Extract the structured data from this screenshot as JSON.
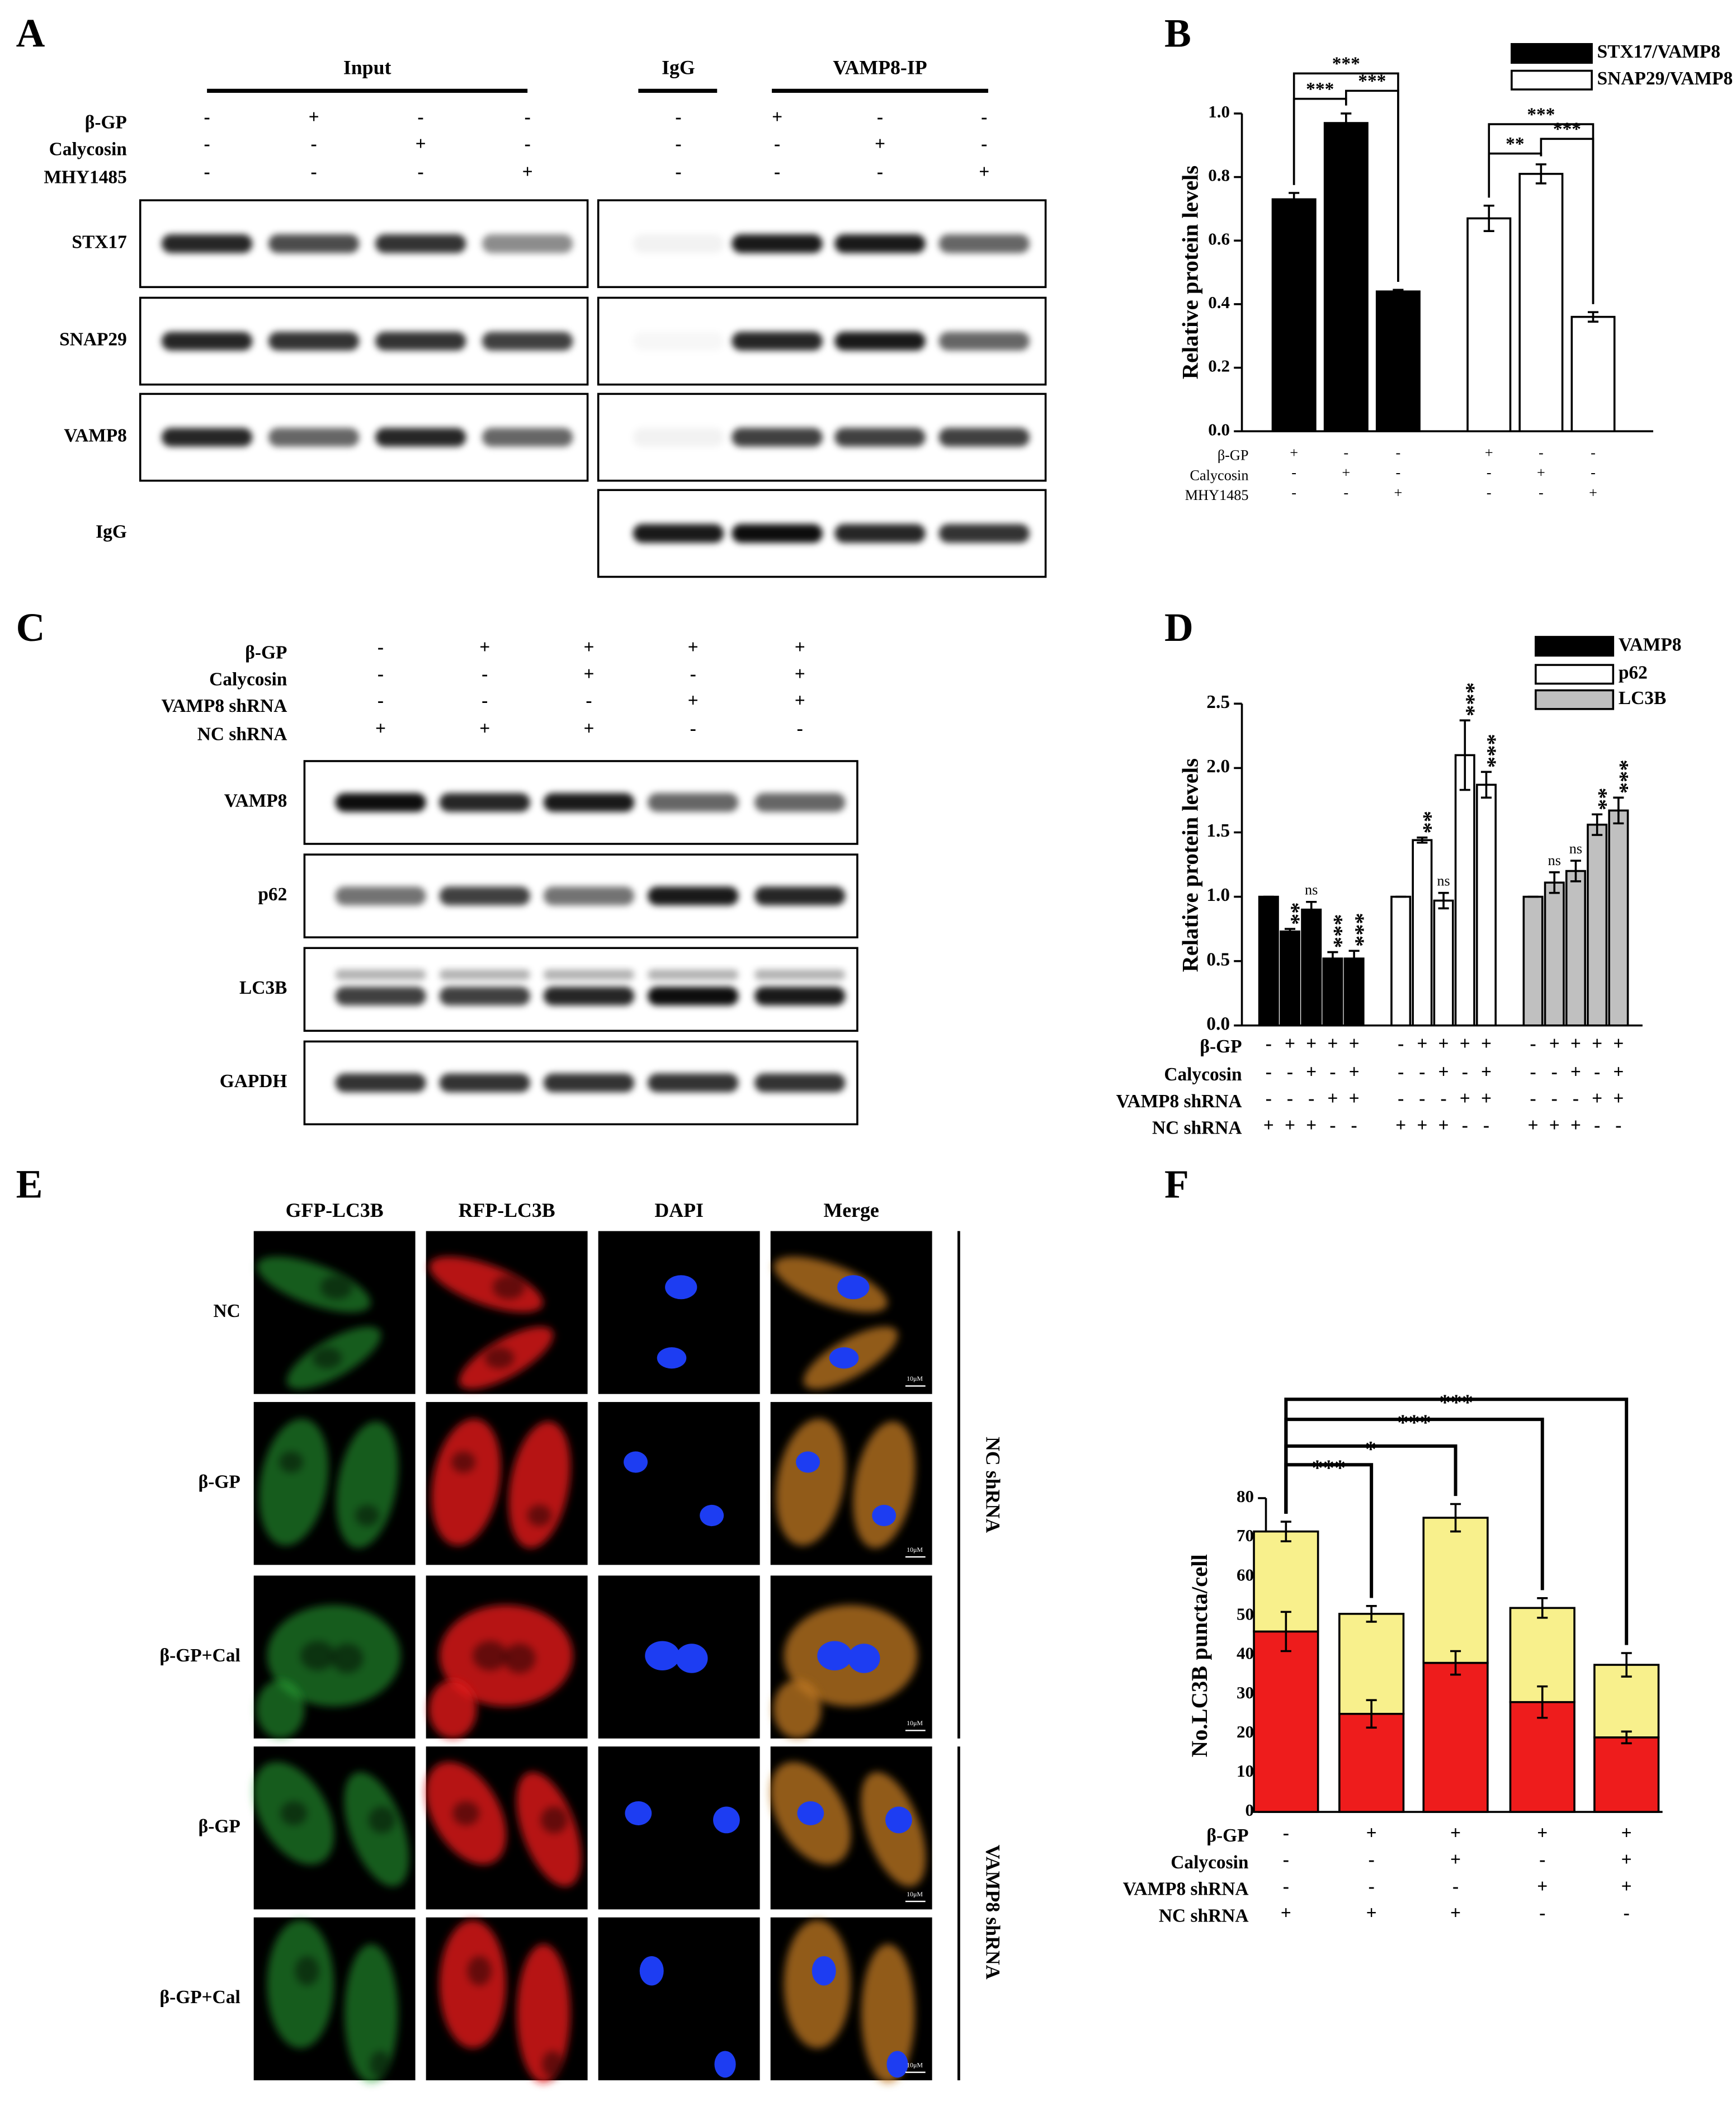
{
  "panel_labels": [
    "A",
    "B",
    "C",
    "D",
    "E",
    "F"
  ],
  "blot_a": {
    "groups": [
      "Input",
      "IgG",
      "VAMP8-IP"
    ],
    "conditions": [
      {
        "name": "β-GP",
        "signs": [
          "-",
          "+",
          "-",
          "-",
          "-",
          "+",
          "-",
          "-"
        ]
      },
      {
        "name": "Calycosin",
        "signs": [
          "-",
          "-",
          "+",
          "-",
          "-",
          "-",
          "+",
          "-"
        ]
      },
      {
        "name": "MHY1485",
        "signs": [
          "-",
          "-",
          "-",
          "+",
          "-",
          "-",
          "-",
          "+"
        ]
      }
    ],
    "rows": [
      "STX17",
      "SNAP29",
      "VAMP8",
      "IgG"
    ]
  },
  "blot_c": {
    "conditions": [
      {
        "name": "β-GP",
        "signs": [
          "-",
          "+",
          "+",
          "+",
          "+"
        ]
      },
      {
        "name": "Calycosin",
        "signs": [
          "-",
          "-",
          "+",
          "-",
          "+"
        ]
      },
      {
        "name": "VAMP8 shRNA",
        "signs": [
          "-",
          "-",
          "-",
          "+",
          "+"
        ]
      },
      {
        "name": "NC shRNA",
        "signs": [
          "+",
          "+",
          "+",
          "-",
          "-"
        ]
      }
    ],
    "rows": [
      "VAMP8",
      "p62",
      "LC3B",
      "GAPDH"
    ]
  },
  "imaging_e": {
    "columns": [
      "GFP-LC3B",
      "RFP-LC3B",
      "DAPI",
      "Merge"
    ],
    "rows": [
      "NC",
      "β-GP",
      "β-GP+Cal",
      "β-GP",
      "β-GP+Cal"
    ],
    "groups": [
      "NC shRNA",
      "VAMP8 shRNA"
    ],
    "scale_bar": "10μM"
  },
  "chart_data": [
    {
      "type": "bar",
      "ylabel": "Relative protein levels",
      "ylim": [
        0,
        1
      ],
      "yticks": [
        {
          "value": 0,
          "label": "0.0"
        },
        0.2,
        0.4,
        0.6,
        0.8,
        {
          "value": 1,
          "label": "1.0"
        }
      ],
      "legend": "upper right",
      "series": [
        {
          "name": "STX17/VAMP8",
          "color": "#000000",
          "values": [
            0.73,
            0.97,
            0.44
          ],
          "errors": [
            0.02,
            0.03,
            0.005
          ],
          "significance": [
            "***",
            "***",
            "***"
          ]
        },
        {
          "name": "SNAP29/VAMP8",
          "color": "#ffffff",
          "values": [
            0.67,
            0.81,
            0.36
          ],
          "errors": [
            0.04,
            0.03,
            0.015
          ],
          "significance": [
            "**",
            "***",
            "***"
          ]
        }
      ],
      "conditions": [
        {
          "name": "β-GP",
          "signs": [
            "+",
            "-",
            "-"
          ]
        },
        {
          "name": "Calycosin",
          "signs": [
            "-",
            "+",
            "-"
          ]
        },
        {
          "name": "MHY1485",
          "signs": [
            "-",
            "-",
            "+"
          ]
        }
      ]
    },
    {
      "type": "bar",
      "ylabel": "Relative protein levels",
      "ylim": [
        0,
        2.5
      ],
      "yticks": [
        {
          "value": 0,
          "label": "0.0"
        },
        0.5,
        {
          "value": 1,
          "label": "1.0"
        },
        1.5,
        {
          "value": 2,
          "label": "2.0"
        },
        2.5
      ],
      "legend": "upper right",
      "series": [
        {
          "name": "VAMP8",
          "color": "#000000",
          "values": [
            1.0,
            0.73,
            0.9,
            0.52,
            0.52
          ],
          "errors": [
            0,
            0.02,
            0.06,
            0.05,
            0.06
          ],
          "significance": [
            null,
            "**",
            "ns",
            "***",
            "***"
          ]
        },
        {
          "name": "p62",
          "color": "#ffffff",
          "values": [
            1.0,
            1.44,
            0.97,
            2.1,
            1.87
          ],
          "errors": [
            0,
            0.02,
            0.06,
            0.27,
            0.1
          ],
          "significance": [
            null,
            "**",
            "ns",
            "***",
            "***"
          ]
        },
        {
          "name": "LC3B",
          "color": "#c0c0c0",
          "values": [
            1.0,
            1.11,
            1.2,
            1.56,
            1.67
          ],
          "errors": [
            0,
            0.08,
            0.08,
            0.08,
            0.1
          ],
          "significance": [
            null,
            "ns",
            "ns",
            "**",
            "***"
          ]
        }
      ],
      "conditions": [
        {
          "name": "β-GP",
          "signs": [
            "-",
            "+",
            "+",
            "+",
            "+"
          ]
        },
        {
          "name": "Calycosin",
          "signs": [
            "-",
            "-",
            "+",
            "-",
            "+"
          ]
        },
        {
          "name": "VAMP8 shRNA",
          "signs": [
            "-",
            "-",
            "-",
            "+",
            "+"
          ]
        },
        {
          "name": "NC shRNA",
          "signs": [
            "+",
            "+",
            "+",
            "-",
            "-"
          ]
        }
      ]
    },
    {
      "type": "stacked_bar",
      "ylabel": "No.LC3B puncta/cell",
      "ylim": [
        0,
        80
      ],
      "yticks": [
        0,
        10,
        20,
        30,
        40,
        50,
        60,
        70,
        80
      ],
      "series": [
        {
          "color": "#ee1c1c",
          "values": [
            46,
            25,
            38,
            28,
            19
          ],
          "errors": [
            5,
            3.5,
            3,
            4,
            1.5
          ]
        },
        {
          "color": "#f8f08c",
          "values": [
            25.5,
            25.5,
            37,
            24,
            18.5
          ],
          "errors": [
            2.5,
            2,
            3.5,
            2.5,
            3
          ]
        }
      ],
      "significance": [
        "***",
        "*",
        "***",
        "***"
      ],
      "conditions": [
        {
          "name": "β-GP",
          "signs": [
            "-",
            "+",
            "+",
            "+",
            "+"
          ]
        },
        {
          "name": "Calycosin",
          "signs": [
            "-",
            "-",
            "+",
            "-",
            "+"
          ]
        },
        {
          "name": "VAMP8 shRNA",
          "signs": [
            "-",
            "-",
            "-",
            "+",
            "+"
          ]
        },
        {
          "name": "NC shRNA",
          "signs": [
            "+",
            "+",
            "+",
            "-",
            "-"
          ]
        }
      ]
    }
  ]
}
